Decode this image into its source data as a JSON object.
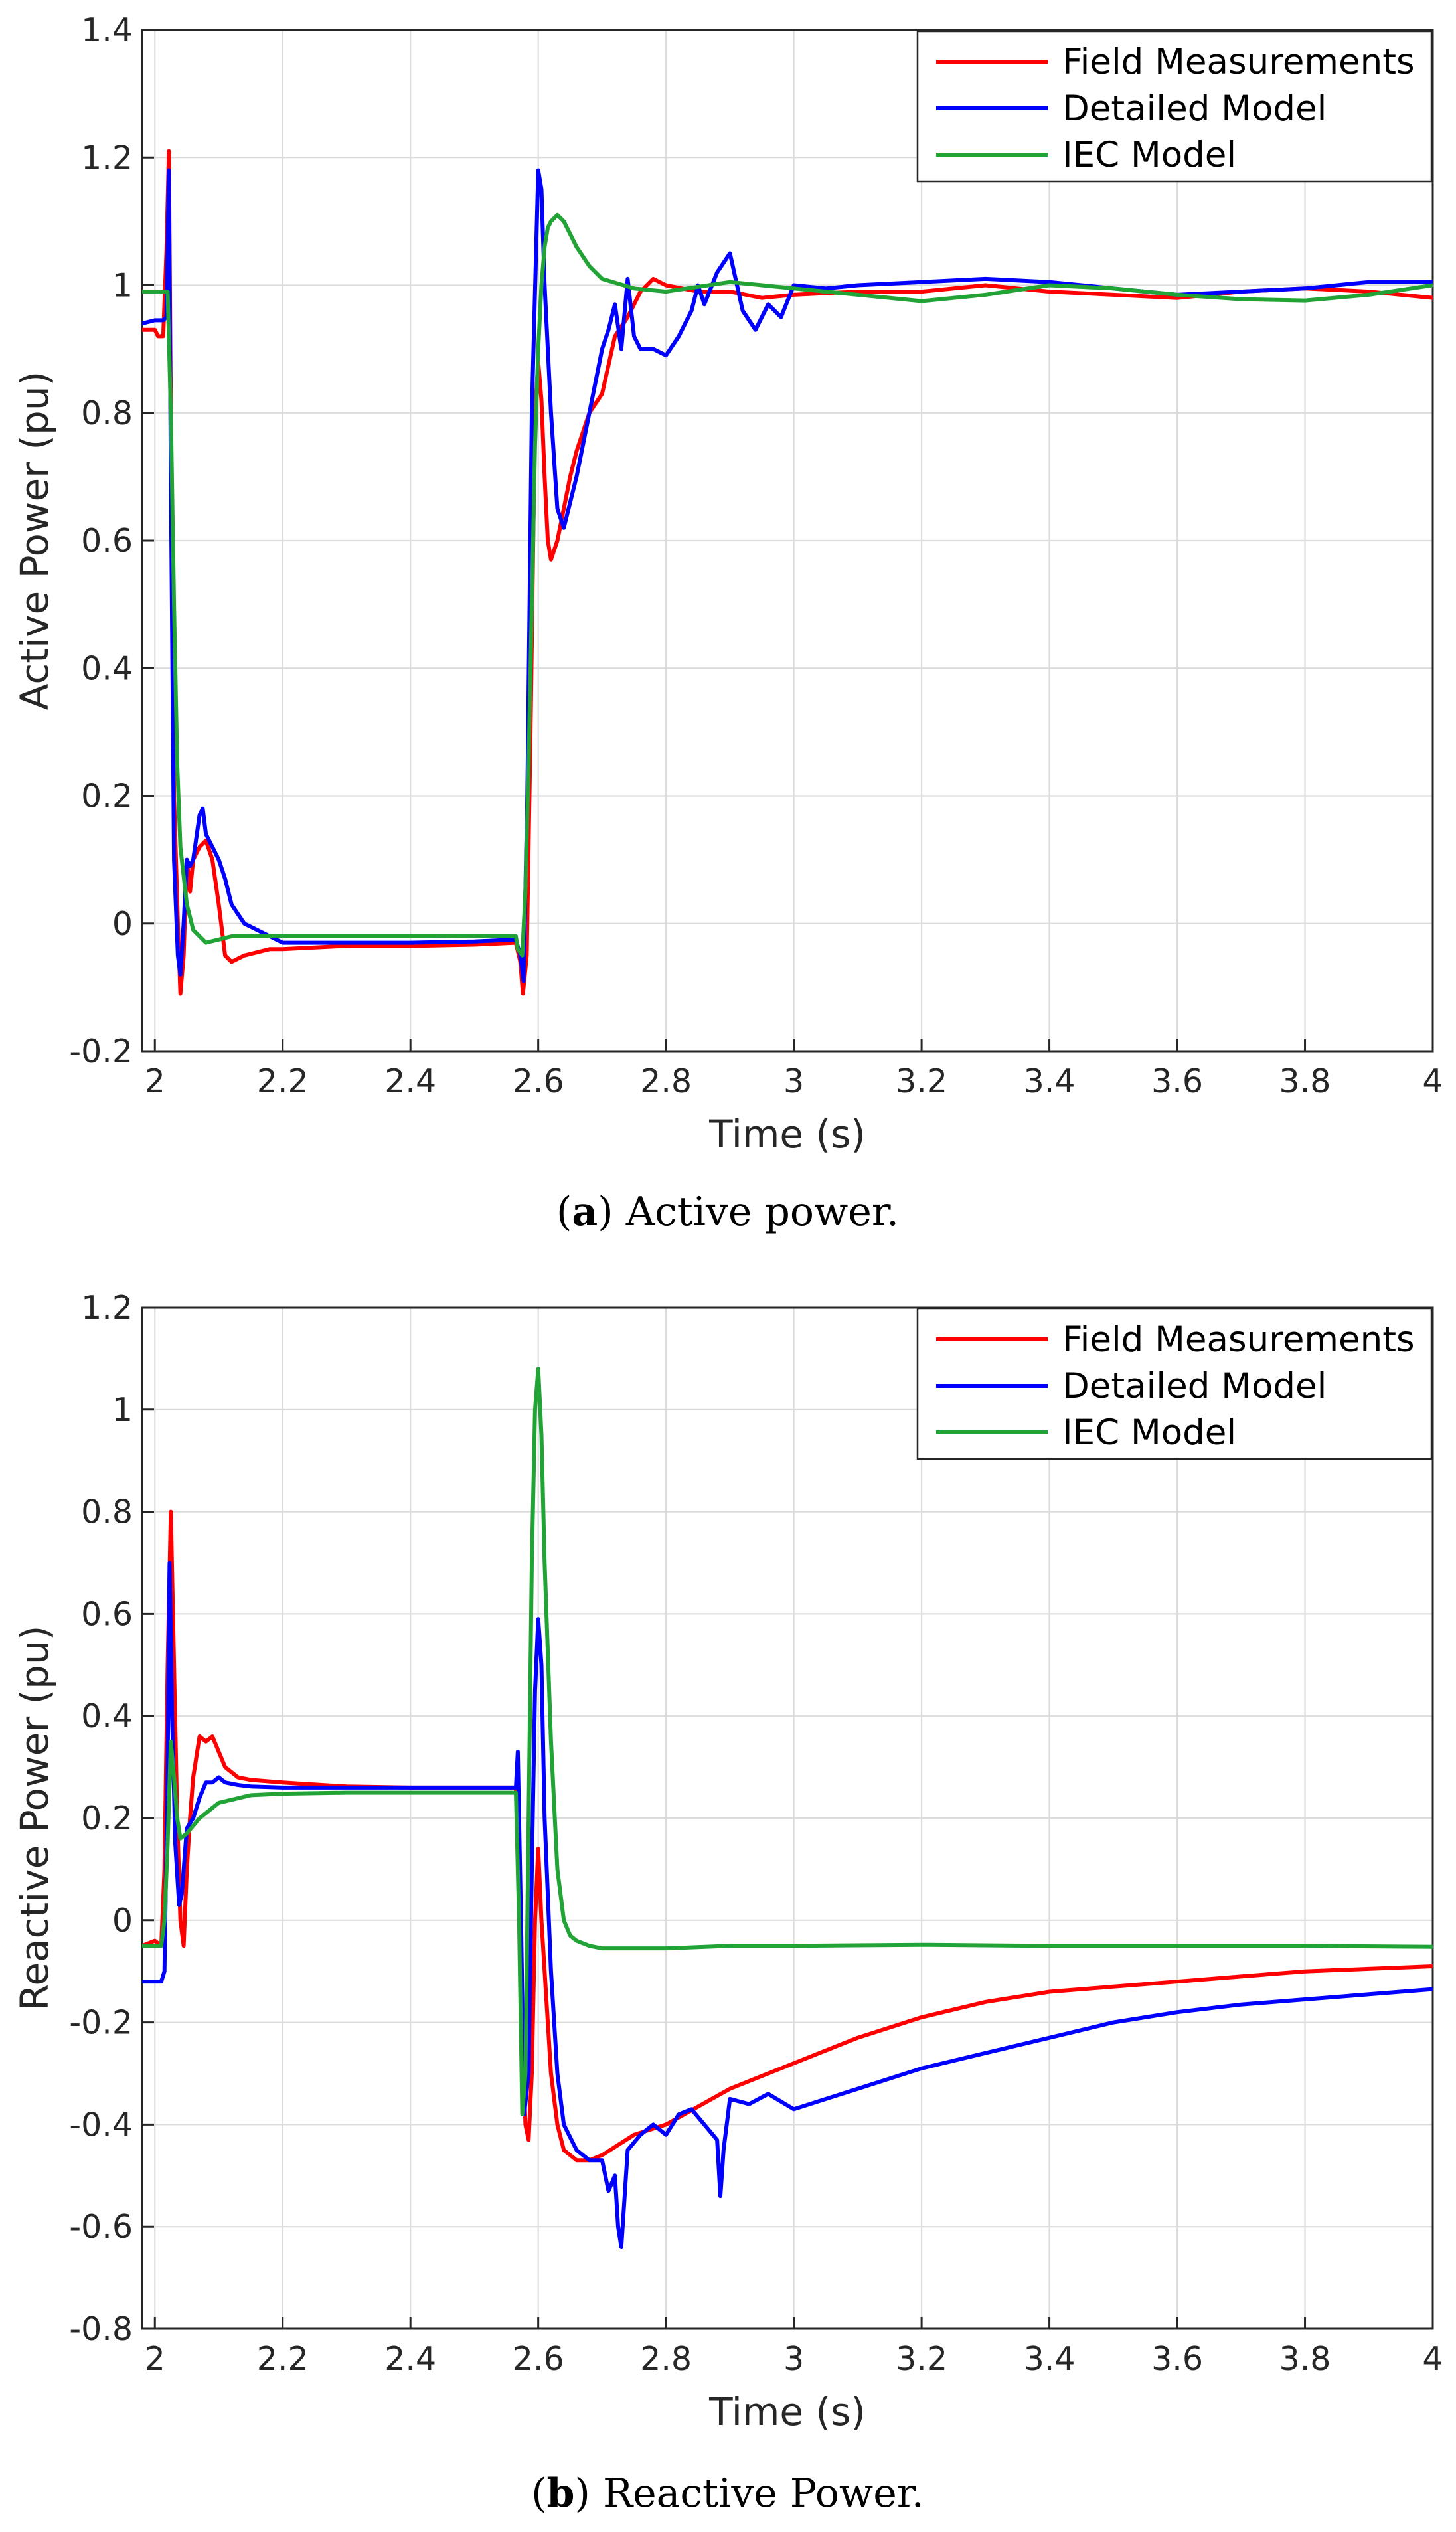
{
  "colors": {
    "field": "#ff0000",
    "detailed": "#0000ff",
    "iec": "#21a336"
  },
  "chart_data": [
    {
      "type": "line",
      "id": "active",
      "xlabel": "Time (s)",
      "ylabel": "Active Power (pu)",
      "xlim": [
        1.98,
        4.0
      ],
      "ylim": [
        -0.2,
        1.4
      ],
      "xticks": [
        2,
        2.2,
        2.4,
        2.6,
        2.8,
        3,
        3.2,
        3.4,
        3.6,
        3.8,
        4
      ],
      "xtick_labels": [
        "2",
        "2.2",
        "2.4",
        "2.6",
        "2.8",
        "3",
        "3.2",
        "3.4",
        "3.6",
        "3.8",
        "4"
      ],
      "yticks": [
        -0.2,
        0,
        0.2,
        0.4,
        0.6,
        0.8,
        1,
        1.2,
        1.4
      ],
      "ytick_labels": [
        "-0.2",
        "0",
        "0.2",
        "0.4",
        "0.6",
        "0.8",
        "1",
        "1.2",
        "1.4"
      ],
      "grid": true,
      "legend_position": "top-right",
      "caption_letter": "a",
      "caption_text": "Active power.",
      "series": [
        {
          "name": "Field Measurements",
          "color": "#ff0000",
          "x": [
            1.98,
            2.0,
            2.005,
            2.013,
            2.018,
            2.022,
            2.025,
            2.03,
            2.036,
            2.04,
            2.045,
            2.05,
            2.055,
            2.06,
            2.07,
            2.08,
            2.09,
            2.1,
            2.11,
            2.12,
            2.14,
            2.18,
            2.2,
            2.3,
            2.4,
            2.5,
            2.565,
            2.572,
            2.576,
            2.582,
            2.588,
            2.595,
            2.6,
            2.605,
            2.61,
            2.615,
            2.62,
            2.63,
            2.64,
            2.65,
            2.66,
            2.68,
            2.7,
            2.72,
            2.74,
            2.76,
            2.78,
            2.8,
            2.85,
            2.9,
            2.95,
            3.0,
            3.1,
            3.2,
            3.3,
            3.4,
            3.5,
            3.6,
            3.7,
            3.8,
            3.9,
            4.0
          ],
          "y": [
            0.93,
            0.93,
            0.92,
            0.92,
            1.05,
            1.21,
            0.8,
            0.2,
            0.0,
            -0.11,
            -0.05,
            0.1,
            0.05,
            0.1,
            0.12,
            0.13,
            0.1,
            0.03,
            -0.05,
            -0.06,
            -0.05,
            -0.04,
            -0.04,
            -0.035,
            -0.035,
            -0.033,
            -0.03,
            -0.06,
            -0.11,
            -0.05,
            0.3,
            0.8,
            0.88,
            0.82,
            0.7,
            0.6,
            0.57,
            0.6,
            0.65,
            0.7,
            0.74,
            0.8,
            0.83,
            0.92,
            0.95,
            0.99,
            1.01,
            1.0,
            0.99,
            0.99,
            0.98,
            0.985,
            0.99,
            0.99,
            1.0,
            0.99,
            0.985,
            0.98,
            0.99,
            0.995,
            0.99,
            0.98
          ]
        },
        {
          "name": "Detailed Model",
          "color": "#0000ff",
          "x": [
            1.98,
            2.0,
            2.005,
            2.013,
            2.018,
            2.022,
            2.025,
            2.03,
            2.036,
            2.04,
            2.045,
            2.05,
            2.055,
            2.06,
            2.07,
            2.075,
            2.08,
            2.09,
            2.1,
            2.11,
            2.12,
            2.14,
            2.18,
            2.2,
            2.3,
            2.4,
            2.5,
            2.565,
            2.572,
            2.577,
            2.583,
            2.59,
            2.6,
            2.605,
            2.61,
            2.62,
            2.63,
            2.64,
            2.66,
            2.68,
            2.7,
            2.71,
            2.72,
            2.73,
            2.74,
            2.75,
            2.76,
            2.78,
            2.8,
            2.82,
            2.84,
            2.85,
            2.86,
            2.88,
            2.9,
            2.92,
            2.94,
            2.96,
            2.98,
            3.0,
            3.05,
            3.1,
            3.2,
            3.3,
            3.4,
            3.5,
            3.6,
            3.7,
            3.8,
            3.9,
            4.0
          ],
          "y": [
            0.94,
            0.945,
            0.945,
            0.945,
            0.95,
            1.18,
            0.7,
            0.1,
            -0.05,
            -0.08,
            0.0,
            0.1,
            0.09,
            0.1,
            0.17,
            0.18,
            0.14,
            0.12,
            0.1,
            0.07,
            0.03,
            0.0,
            -0.02,
            -0.03,
            -0.03,
            -0.03,
            -0.028,
            -0.025,
            -0.05,
            -0.09,
            0.2,
            0.8,
            1.18,
            1.15,
            1.0,
            0.8,
            0.65,
            0.62,
            0.7,
            0.8,
            0.9,
            0.93,
            0.97,
            0.9,
            1.01,
            0.92,
            0.9,
            0.9,
            0.89,
            0.92,
            0.96,
            1.0,
            0.97,
            1.02,
            1.05,
            0.96,
            0.93,
            0.97,
            0.95,
            1.0,
            0.995,
            1.0,
            1.005,
            1.01,
            1.005,
            0.995,
            0.985,
            0.99,
            0.995,
            1.005,
            1.005
          ]
        },
        {
          "name": "IEC Model",
          "color": "#21a336",
          "x": [
            1.98,
            2.0,
            2.01,
            2.015,
            2.02,
            2.025,
            2.03,
            2.035,
            2.04,
            2.05,
            2.06,
            2.08,
            2.1,
            2.12,
            2.15,
            2.2,
            2.3,
            2.4,
            2.5,
            2.565,
            2.568,
            2.575,
            2.58,
            2.585,
            2.59,
            2.595,
            2.6,
            2.605,
            2.61,
            2.615,
            2.62,
            2.63,
            2.64,
            2.66,
            2.68,
            2.7,
            2.75,
            2.8,
            2.9,
            3.0,
            3.1,
            3.2,
            3.3,
            3.4,
            3.5,
            3.6,
            3.7,
            3.8,
            3.9,
            4.0
          ],
          "y": [
            0.99,
            0.99,
            0.99,
            0.99,
            0.99,
            0.8,
            0.5,
            0.25,
            0.12,
            0.03,
            -0.01,
            -0.03,
            -0.025,
            -0.02,
            -0.02,
            -0.02,
            -0.02,
            -0.02,
            -0.02,
            -0.02,
            -0.04,
            -0.05,
            0.05,
            0.25,
            0.5,
            0.75,
            0.9,
            1.0,
            1.06,
            1.09,
            1.1,
            1.11,
            1.1,
            1.06,
            1.03,
            1.01,
            0.995,
            0.99,
            1.005,
            0.995,
            0.985,
            0.975,
            0.985,
            1.0,
            0.995,
            0.985,
            0.978,
            0.976,
            0.985,
            1.0
          ]
        }
      ]
    },
    {
      "type": "line",
      "id": "reactive",
      "xlabel": "Time (s)",
      "ylabel": "Reactive Power (pu)",
      "xlim": [
        1.98,
        4.0
      ],
      "ylim": [
        -0.8,
        1.2
      ],
      "xticks": [
        2,
        2.2,
        2.4,
        2.6,
        2.8,
        3,
        3.2,
        3.4,
        3.6,
        3.8,
        4
      ],
      "xtick_labels": [
        "2",
        "2.2",
        "2.4",
        "2.6",
        "2.8",
        "3",
        "3.2",
        "3.4",
        "3.6",
        "3.8",
        "4"
      ],
      "yticks": [
        -0.8,
        -0.6,
        -0.4,
        -0.2,
        0,
        0.2,
        0.4,
        0.6,
        0.8,
        1,
        1.2
      ],
      "ytick_labels": [
        "-0.8",
        "-0.6",
        "-0.4",
        "-0.2",
        "0",
        "0.2",
        "0.4",
        "0.6",
        "0.8",
        "1",
        "1.2"
      ],
      "grid": true,
      "legend_position": "top-right",
      "caption_letter": "b",
      "caption_text": "Reactive Power.",
      "series": [
        {
          "name": "Field Measurements",
          "color": "#ff0000",
          "x": [
            1.98,
            2.0,
            2.01,
            2.015,
            2.02,
            2.025,
            2.03,
            2.035,
            2.04,
            2.045,
            2.05,
            2.055,
            2.06,
            2.07,
            2.08,
            2.09,
            2.1,
            2.11,
            2.13,
            2.15,
            2.2,
            2.3,
            2.4,
            2.5,
            2.565,
            2.57,
            2.575,
            2.58,
            2.585,
            2.59,
            2.595,
            2.6,
            2.605,
            2.61,
            2.62,
            2.63,
            2.64,
            2.66,
            2.68,
            2.7,
            2.75,
            2.8,
            2.9,
            3.0,
            3.1,
            3.2,
            3.3,
            3.4,
            3.5,
            3.6,
            3.7,
            3.8,
            3.9,
            4.0
          ],
          "y": [
            -0.05,
            -0.04,
            -0.05,
            0.1,
            0.5,
            0.8,
            0.5,
            0.2,
            0.0,
            -0.05,
            0.1,
            0.2,
            0.28,
            0.36,
            0.35,
            0.36,
            0.33,
            0.3,
            0.28,
            0.275,
            0.27,
            0.262,
            0.26,
            0.26,
            0.26,
            0.1,
            -0.2,
            -0.4,
            -0.43,
            -0.3,
            0.0,
            0.14,
            0.0,
            -0.1,
            -0.3,
            -0.4,
            -0.45,
            -0.47,
            -0.47,
            -0.46,
            -0.42,
            -0.4,
            -0.33,
            -0.28,
            -0.23,
            -0.19,
            -0.16,
            -0.14,
            -0.13,
            -0.12,
            -0.11,
            -0.1,
            -0.095,
            -0.09
          ]
        },
        {
          "name": "Detailed Model",
          "color": "#0000ff",
          "x": [
            1.98,
            2.0,
            2.01,
            2.015,
            2.02,
            2.023,
            2.027,
            2.032,
            2.038,
            2.042,
            2.05,
            2.06,
            2.07,
            2.08,
            2.09,
            2.1,
            2.11,
            2.13,
            2.15,
            2.2,
            2.3,
            2.4,
            2.5,
            2.565,
            2.568,
            2.573,
            2.578,
            2.585,
            2.59,
            2.595,
            2.6,
            2.605,
            2.61,
            2.62,
            2.63,
            2.64,
            2.66,
            2.68,
            2.7,
            2.71,
            2.72,
            2.725,
            2.73,
            2.74,
            2.76,
            2.78,
            2.8,
            2.82,
            2.84,
            2.86,
            2.88,
            2.885,
            2.89,
            2.9,
            2.93,
            2.96,
            3.0,
            3.1,
            3.2,
            3.3,
            3.4,
            3.5,
            3.6,
            3.7,
            3.8,
            3.9,
            4.0
          ],
          "y": [
            -0.12,
            -0.12,
            -0.12,
            -0.1,
            0.3,
            0.7,
            0.4,
            0.15,
            0.03,
            0.05,
            0.18,
            0.2,
            0.24,
            0.27,
            0.27,
            0.28,
            0.27,
            0.265,
            0.262,
            0.26,
            0.26,
            0.26,
            0.26,
            0.26,
            0.33,
            0.0,
            -0.38,
            -0.3,
            0.1,
            0.45,
            0.59,
            0.5,
            0.2,
            -0.1,
            -0.3,
            -0.4,
            -0.45,
            -0.47,
            -0.47,
            -0.53,
            -0.5,
            -0.6,
            -0.64,
            -0.45,
            -0.42,
            -0.4,
            -0.42,
            -0.38,
            -0.37,
            -0.4,
            -0.43,
            -0.54,
            -0.45,
            -0.35,
            -0.36,
            -0.34,
            -0.37,
            -0.33,
            -0.29,
            -0.26,
            -0.23,
            -0.2,
            -0.18,
            -0.165,
            -0.155,
            -0.145,
            -0.135
          ]
        },
        {
          "name": "IEC Model",
          "color": "#21a336",
          "x": [
            1.98,
            2.0,
            2.01,
            2.015,
            2.02,
            2.025,
            2.03,
            2.035,
            2.04,
            2.05,
            2.07,
            2.1,
            2.15,
            2.2,
            2.3,
            2.4,
            2.5,
            2.565,
            2.57,
            2.575,
            2.58,
            2.585,
            2.59,
            2.595,
            2.6,
            2.605,
            2.61,
            2.62,
            2.63,
            2.64,
            2.65,
            2.66,
            2.68,
            2.7,
            2.75,
            2.8,
            2.9,
            3.0,
            3.2,
            3.4,
            3.6,
            3.8,
            4.0
          ],
          "y": [
            -0.05,
            -0.05,
            -0.05,
            0.0,
            0.15,
            0.35,
            0.28,
            0.2,
            0.16,
            0.17,
            0.2,
            0.23,
            0.245,
            0.248,
            0.25,
            0.25,
            0.25,
            0.25,
            0.0,
            -0.38,
            -0.3,
            0.2,
            0.7,
            1.0,
            1.08,
            0.95,
            0.7,
            0.35,
            0.1,
            0.0,
            -0.03,
            -0.04,
            -0.05,
            -0.055,
            -0.055,
            -0.055,
            -0.05,
            -0.05,
            -0.048,
            -0.05,
            -0.05,
            -0.05,
            -0.052
          ]
        }
      ]
    }
  ]
}
